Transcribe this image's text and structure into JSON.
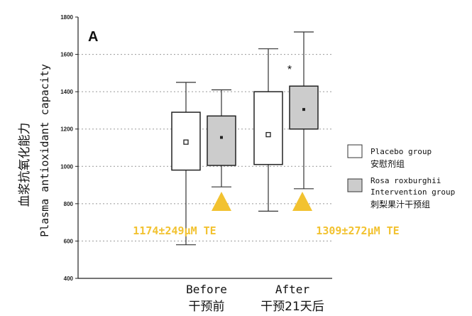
{
  "chart_data": {
    "type": "box",
    "panel_label": "A",
    "ylabel_cn": "血浆抗氧化能力",
    "ylabel_en": "Plasma antioxidant capacity",
    "ylim": [
      400,
      1800
    ],
    "yticks": [
      400,
      600,
      800,
      1000,
      1200,
      1400,
      1600,
      1800
    ],
    "grid": "horizontal dotted",
    "categories": [
      {
        "en": "Before",
        "cn": "干预前"
      },
      {
        "en": "After",
        "cn": "干预21天后"
      }
    ],
    "series": [
      {
        "name": "Placebo group",
        "name_cn": "安慰剂组",
        "fill": "#ffffff",
        "boxes": [
          {
            "min": 580,
            "q1": 980,
            "median": 1130,
            "q3": 1290,
            "max": 1450
          },
          {
            "min": 760,
            "q1": 1010,
            "median": 1170,
            "q3": 1400,
            "max": 1630
          }
        ]
      },
      {
        "name": "Rosa roxburghii Intervention group",
        "name_cn": "刺梨果汁干预组",
        "fill": "#cccccc",
        "boxes": [
          {
            "min": 890,
            "q1": 1005,
            "median": 1155,
            "q3": 1270,
            "max": 1410
          },
          {
            "min": 880,
            "q1": 1200,
            "median": 1305,
            "q3": 1430,
            "max": 1720
          }
        ]
      }
    ],
    "significance": {
      "text": "*",
      "category": "After",
      "value": 1530
    },
    "legend_position": "right",
    "annotations": [
      {
        "text": "1174±249μM TE",
        "category": "Before",
        "color": "#f2c230"
      },
      {
        "text": "1309±272μM TE",
        "category": "After",
        "color": "#f2c230"
      }
    ],
    "marker_color": "#f2c230"
  }
}
